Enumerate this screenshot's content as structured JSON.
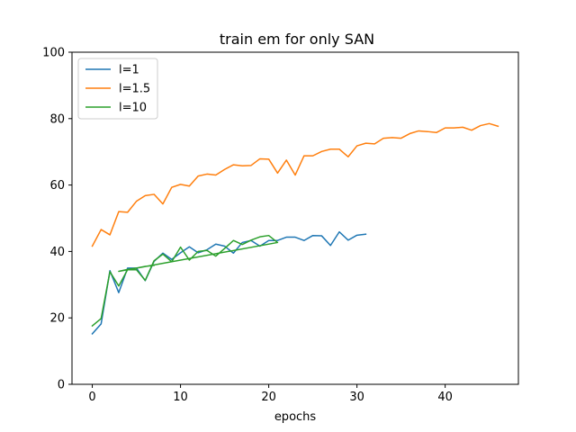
{
  "chart_data": {
    "type": "line",
    "title": "train em for only SAN",
    "xlabel": "epochs",
    "ylabel": "",
    "xlim": [
      -2.3,
      48.3
    ],
    "ylim": [
      0,
      100
    ],
    "xticks": [
      0,
      10,
      20,
      30,
      40
    ],
    "yticks": [
      0,
      20,
      40,
      60,
      80,
      100
    ],
    "grid": false,
    "legend_position": "top-left",
    "series": [
      {
        "name": "l=1",
        "color": "#1f77b4",
        "x": [
          0,
          1,
          2,
          3,
          4,
          5,
          6,
          7,
          8,
          9,
          10,
          11,
          12,
          13,
          14,
          15,
          16,
          17,
          18,
          19,
          20,
          21,
          22,
          23,
          24,
          25,
          26,
          27,
          28,
          29,
          30,
          31
        ],
        "y": [
          15.2,
          18.2,
          34.2,
          27.6,
          35.0,
          35.0,
          31.2,
          37.0,
          39.5,
          37.6,
          39.6,
          41.4,
          39.6,
          40.5,
          42.2,
          41.6,
          39.5,
          42.7,
          43.3,
          41.6,
          43.3,
          43.3,
          44.3,
          44.3,
          43.3,
          44.8,
          44.7,
          41.8,
          45.9,
          43.4,
          44.9,
          45.2
        ]
      },
      {
        "name": "l=1.5",
        "color": "#ff7f0e",
        "x": [
          0,
          1,
          2,
          3,
          4,
          5,
          6,
          7,
          8,
          9,
          10,
          11,
          12,
          13,
          14,
          15,
          16,
          17,
          18,
          19,
          20,
          21,
          22,
          23,
          24,
          25,
          26,
          27,
          28,
          29,
          30,
          31,
          32,
          33,
          34,
          35,
          36,
          37,
          38,
          39,
          40,
          41,
          42,
          43,
          44,
          45,
          46
        ],
        "y": [
          41.6,
          46.6,
          45.0,
          52.0,
          51.8,
          55.1,
          56.8,
          57.2,
          54.3,
          59.3,
          60.2,
          59.7,
          62.7,
          63.3,
          63.0,
          64.7,
          66.1,
          65.8,
          65.9,
          67.9,
          67.8,
          63.6,
          67.5,
          63.0,
          68.8,
          68.8,
          70.1,
          70.8,
          70.8,
          68.5,
          71.8,
          72.6,
          72.4,
          74.1,
          74.3,
          74.1,
          75.5,
          76.3,
          76.1,
          75.8,
          77.2,
          77.2,
          77.4,
          76.5,
          77.9,
          78.5,
          77.7
        ]
      },
      {
        "name": "l=10",
        "color": "#2ca02c",
        "x": [
          0,
          1,
          2,
          3,
          4,
          5,
          6,
          7,
          8,
          9,
          10,
          11,
          12,
          13,
          14,
          15,
          16,
          17,
          18,
          19,
          20,
          21,
          3,
          4,
          5,
          6,
          7
        ],
        "y": [
          17.6,
          19.8,
          33.9,
          29.6,
          34.5,
          34.5,
          31.3,
          37.2,
          39.2,
          36.9,
          41.3,
          37.4,
          40.0,
          40.3,
          38.6,
          40.9,
          43.3,
          42.1,
          43.4,
          44.4,
          44.8,
          42.7,
          34.0,
          34.6,
          35.0,
          35.5,
          35.8
        ]
      }
    ]
  }
}
